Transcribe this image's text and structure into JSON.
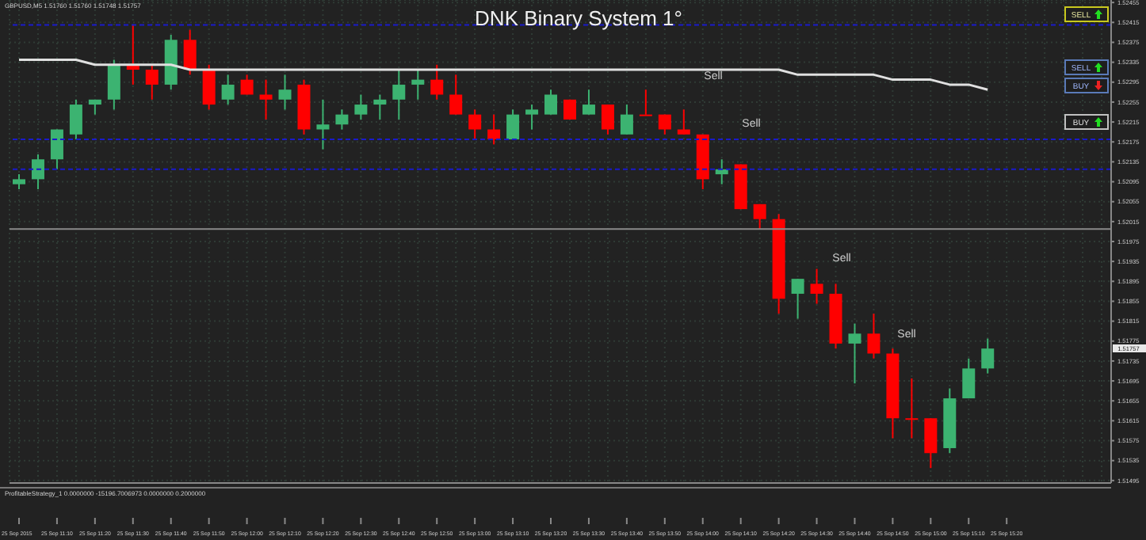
{
  "chart_data": {
    "type": "candlestick",
    "title": "DNK Binary System 1°",
    "categories": [
      "25 Sep 2015",
      null,
      "25 Sep 11:10",
      null,
      "25 Sep 11:20",
      null,
      "25 Sep 11:30",
      null,
      "25 Sep 11:40",
      null,
      "25 Sep 11:50",
      null,
      "25 Sep 12:00",
      null,
      "25 Sep 12:10",
      null,
      "25 Sep 12:20",
      null,
      "25 Sep 12:30",
      null,
      "25 Sep 12:40",
      null,
      "25 Sep 12:50",
      null,
      "25 Sep 13:00",
      null,
      "25 Sep 13:10",
      null,
      "25 Sep 13:20",
      null,
      "25 Sep 13:30",
      null,
      "25 Sep 13:40",
      null,
      "25 Sep 13:50",
      null,
      "25 Sep 14:00",
      null,
      "25 Sep 14:10",
      null,
      "25 Sep 14:20",
      null,
      "25 Sep 14:30",
      null,
      "25 Sep 14:40",
      null,
      "25 Sep 14:50",
      null,
      "25 Sep 15:00",
      null,
      "25 Sep 15:10",
      null,
      "25 Sep 15:20",
      null,
      null,
      null,
      null,
      null
    ],
    "ohlc": [
      [
        1.5209,
        1.5211,
        1.5208,
        1.521
      ],
      [
        1.521,
        1.5215,
        1.5208,
        1.5214
      ],
      [
        1.5214,
        1.522,
        1.5212,
        1.522
      ],
      [
        1.5219,
        1.5226,
        1.5218,
        1.5225
      ],
      [
        1.5225,
        1.5226,
        1.5223,
        1.5226
      ],
      [
        1.5226,
        1.5234,
        1.5224,
        1.5233
      ],
      [
        1.5233,
        1.5241,
        1.5229,
        1.5232
      ],
      [
        1.5232,
        1.5233,
        1.5226,
        1.5229
      ],
      [
        1.5229,
        1.5239,
        1.5228,
        1.5238
      ],
      [
        1.5238,
        1.524,
        1.5231,
        1.5232
      ],
      [
        1.5232,
        1.5233,
        1.5224,
        1.5225
      ],
      [
        1.5226,
        1.5231,
        1.5225,
        1.5229
      ],
      [
        1.523,
        1.5231,
        1.5227,
        1.5227
      ],
      [
        1.5227,
        1.523,
        1.5222,
        1.5226
      ],
      [
        1.5226,
        1.5231,
        1.5224,
        1.5228
      ],
      [
        1.5229,
        1.523,
        1.5219,
        1.522
      ],
      [
        1.522,
        1.5226,
        1.5216,
        1.5221
      ],
      [
        1.5221,
        1.5224,
        1.522,
        1.5223
      ],
      [
        1.5223,
        1.5227,
        1.5222,
        1.5225
      ],
      [
        1.5225,
        1.5227,
        1.5222,
        1.5226
      ],
      [
        1.5226,
        1.5232,
        1.5222,
        1.5229
      ],
      [
        1.5229,
        1.5232,
        1.5226,
        1.523
      ],
      [
        1.523,
        1.5233,
        1.5226,
        1.5227
      ],
      [
        1.5227,
        1.5231,
        1.5223,
        1.5223
      ],
      [
        1.5223,
        1.5224,
        1.5218,
        1.522
      ],
      [
        1.522,
        1.5223,
        1.5217,
        1.5218
      ],
      [
        1.5218,
        1.5224,
        1.5218,
        1.5223
      ],
      [
        1.5223,
        1.5225,
        1.522,
        1.5224
      ],
      [
        1.5223,
        1.5228,
        1.5223,
        1.5227
      ],
      [
        1.5226,
        1.5226,
        1.5222,
        1.5222
      ],
      [
        1.5223,
        1.5228,
        1.5223,
        1.5225
      ],
      [
        1.5225,
        1.5225,
        1.5219,
        1.522
      ],
      [
        1.5219,
        1.5225,
        1.5219,
        1.5223
      ],
      [
        1.5223,
        1.5228,
        1.5223,
        1.5223
      ],
      [
        1.5223,
        1.5223,
        1.5219,
        1.522
      ],
      [
        1.522,
        1.5224,
        1.5219,
        1.5219
      ],
      [
        1.5219,
        1.5219,
        1.5208,
        1.521
      ],
      [
        1.5211,
        1.5214,
        1.5209,
        1.5212
      ],
      [
        1.5213,
        1.5213,
        1.5204,
        1.5204
      ],
      [
        1.5205,
        1.5205,
        1.52,
        1.5202
      ],
      [
        1.5202,
        1.5203,
        1.5183,
        1.5186
      ],
      [
        1.5187,
        1.519,
        1.5182,
        1.519
      ],
      [
        1.5189,
        1.5192,
        1.5185,
        1.5187
      ],
      [
        1.5187,
        1.5189,
        1.5176,
        1.5177
      ],
      [
        1.5177,
        1.5181,
        1.5169,
        1.5179
      ],
      [
        1.5179,
        1.5183,
        1.5174,
        1.5175
      ],
      [
        1.5175,
        1.5176,
        1.5158,
        1.5162
      ],
      [
        1.5162,
        1.517,
        1.5158,
        1.5162
      ],
      [
        1.5162,
        1.5162,
        1.5152,
        1.5155
      ],
      [
        1.5156,
        1.5168,
        1.5155,
        1.5166
      ],
      [
        1.5166,
        1.5174,
        1.5166,
        1.5172
      ],
      [
        1.5172,
        1.5178,
        1.5171,
        1.5176
      ],
      null,
      null,
      null,
      null,
      null,
      null
    ],
    "colors": [
      "#3cb371",
      "#3cb371",
      "#3cb371",
      "#3cb371",
      "#3cb371",
      "#3cb371",
      "#ff0000",
      "#ff0000",
      "#3cb371",
      "#ff0000",
      "#ff0000",
      "#3cb371",
      "#ff0000",
      "#ff0000",
      "#3cb371",
      "#ff0000",
      "#3cb371",
      "#3cb371",
      "#3cb371",
      "#3cb371",
      "#3cb371",
      "#3cb371",
      "#ff0000",
      "#ff0000",
      "#ff0000",
      "#ff0000",
      "#3cb371",
      "#3cb371",
      "#3cb371",
      "#ff0000",
      "#3cb371",
      "#ff0000",
      "#3cb371",
      "#ff0000",
      "#ff0000",
      "#ff0000",
      "#ff0000",
      "#3cb371",
      "#ff0000",
      "#ff0000",
      "#ff0000",
      "#3cb371",
      "#ff0000",
      "#ff0000",
      "#3cb371",
      "#ff0000",
      "#ff0000",
      "#ff0000",
      "#ff0000",
      "#3cb371",
      "#3cb371",
      "#3cb371",
      null,
      null,
      null,
      null,
      null,
      null
    ],
    "series": [
      {
        "type": "line",
        "color": "#e0e0e0",
        "values": [
          1.5234,
          1.5234,
          1.5234,
          1.5234,
          1.5233,
          1.5233,
          1.5233,
          1.5233,
          1.5233,
          1.5232,
          1.5232,
          1.5232,
          1.5232,
          1.5232,
          1.5232,
          1.5232,
          1.5232,
          1.5232,
          1.5232,
          1.5232,
          1.5232,
          1.5232,
          1.5232,
          1.5232,
          1.5232,
          1.5232,
          1.5232,
          1.5232,
          1.5232,
          1.5232,
          1.5232,
          1.5232,
          1.5232,
          1.5232,
          1.5232,
          1.5232,
          1.5232,
          1.5232,
          1.5232,
          1.5232,
          1.5232,
          1.5231,
          1.5231,
          1.5231,
          1.5231,
          1.5231,
          1.523,
          1.523,
          1.523,
          1.5229,
          1.5229,
          1.5228,
          null,
          null,
          null,
          null,
          null,
          null
        ]
      }
    ],
    "ylim": [
      1.5149,
      1.5246
    ],
    "yticks": [
      1.51495,
      1.51535,
      1.51575,
      1.51615,
      1.51655,
      1.51695,
      1.51735,
      1.51775,
      1.51815,
      1.51855,
      1.51895,
      1.51935,
      1.51975,
      1.52015,
      1.52055,
      1.52095,
      1.52135,
      1.52175,
      1.52215,
      1.52255,
      1.52295,
      1.52335,
      1.52375,
      1.52415,
      1.52455
    ],
    "grid": true,
    "ref_lines": [
      {
        "axis": "y",
        "value": 1.5241,
        "color": "#1a1acc",
        "line_style": "dashed"
      },
      {
        "axis": "y",
        "value": 1.5218,
        "color": "#1a1acc",
        "line_style": "dashed"
      },
      {
        "axis": "y",
        "value": 1.5212,
        "color": "#1a1acc",
        "line_style": "dashed"
      },
      {
        "axis": "y",
        "value": 1.52,
        "color": "#8a8a8a",
        "line_style": "solid"
      }
    ],
    "annotations": [
      "GBPUSD,M5 1.51760 1.51760 1.51748 1.51757",
      "Sell",
      "Sell",
      "Sell",
      "Sell",
      "SELL",
      "SELL",
      "BUY",
      "BUY",
      "ProfitableStrategy_1 0.0000000 -15196.7006973 0.0000000 0.2000000",
      "1.51757"
    ]
  }
}
